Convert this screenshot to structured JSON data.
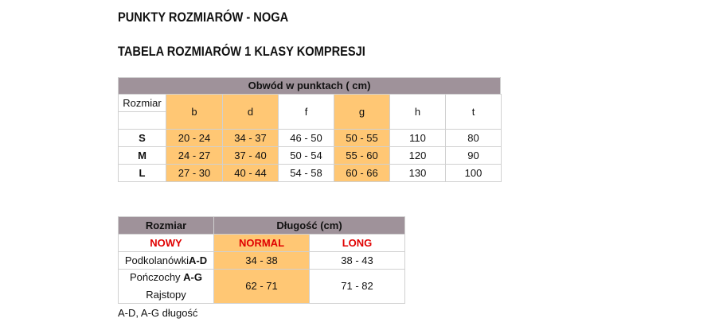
{
  "titles": {
    "main": "PUNKTY ROZMIARÓW - NOGA",
    "sub": "TABELA ROZMIARÓW 1 KLASY KOMPRESJI"
  },
  "table1": {
    "header": "Obwód w punktach ( cm)",
    "size_label": "Rozmiar",
    "columns": [
      "b",
      "d",
      "f",
      "g",
      "h",
      "t"
    ],
    "rows": [
      {
        "size": "S",
        "values": [
          "20 - 24",
          "34 - 37",
          "46 - 50",
          "50 - 55",
          "110",
          "80"
        ]
      },
      {
        "size": "M",
        "values": [
          "24 - 27",
          "37 - 40",
          "50 - 54",
          "55 - 60",
          "120",
          "90"
        ]
      },
      {
        "size": "L",
        "values": [
          "27 - 30",
          "40 - 44",
          "54 - 58",
          "60 - 66",
          "130",
          "100"
        ]
      }
    ]
  },
  "table2": {
    "header_size": "Rozmiar",
    "header_length": "Długość (cm)",
    "sub": [
      "NOWY",
      "NORMAL",
      "LONG"
    ],
    "row1": {
      "label": "Podkolanówki ",
      "label_bold": "A-D",
      "normal": "34 - 38",
      "long": "38 - 43"
    },
    "row2": {
      "label": "Pończochy ",
      "label_bold": "A-G",
      "label2": "Rajstopy",
      "normal": "62 - 71",
      "long": "71 - 82"
    }
  },
  "footnote": "A-D, A-G długość",
  "colors": {
    "header": "#9f929a",
    "highlight": "#ffc774",
    "accent_red": "#e00000"
  }
}
